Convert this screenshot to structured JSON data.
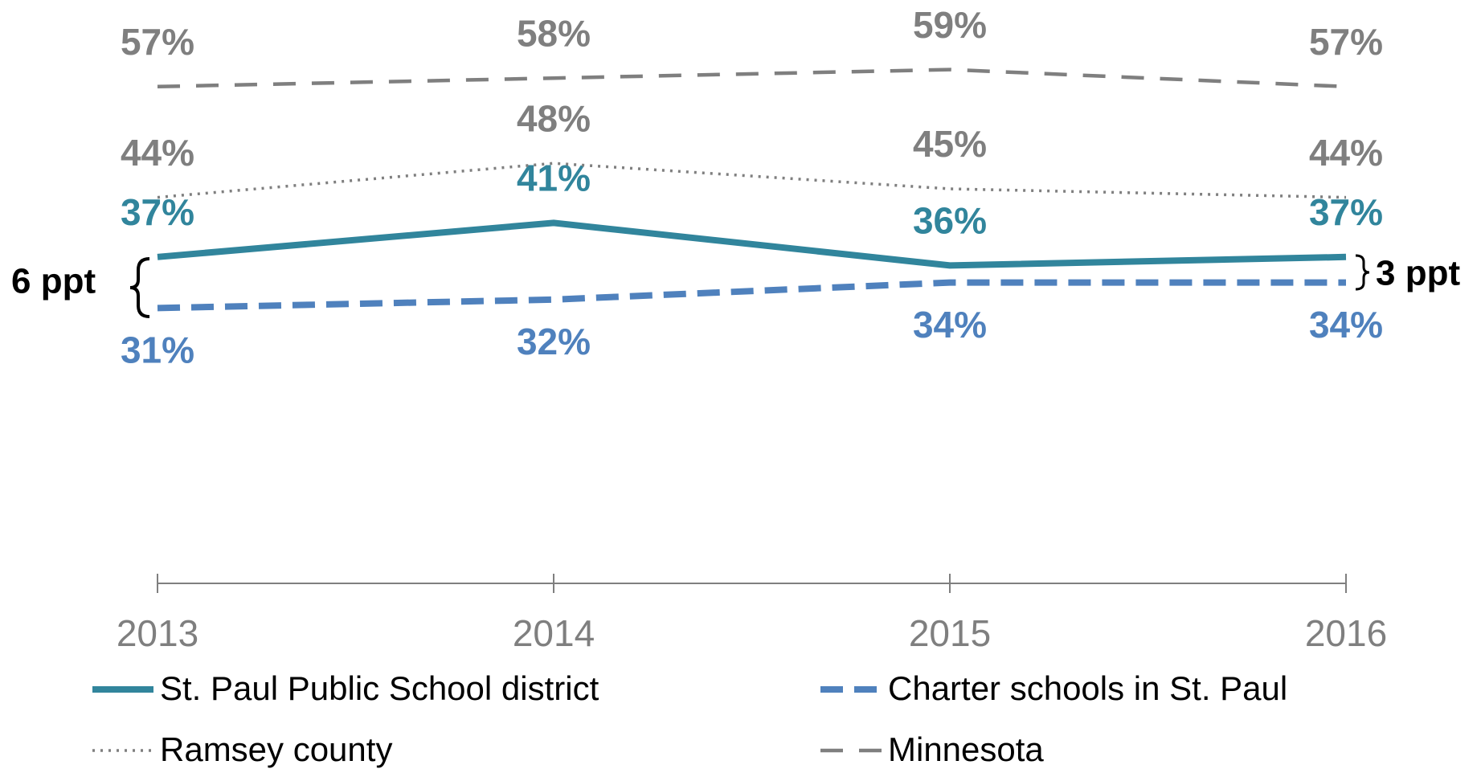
{
  "chart_data": {
    "type": "line",
    "categories": [
      "2013",
      "2014",
      "2015",
      "2016"
    ],
    "ylim": [
      0,
      65
    ],
    "series": [
      {
        "name": "St. Paul Public School district",
        "color": "#31859c",
        "style": "solid",
        "label_position": "above",
        "values": [
          37,
          41,
          36,
          37
        ],
        "value_labels": [
          "37%",
          "41%",
          "36%",
          "37%"
        ]
      },
      {
        "name": "Charter schools in St. Paul",
        "color": "#4f81bd",
        "style": "dashed",
        "label_position": "below",
        "values": [
          31,
          32,
          34,
          34
        ],
        "value_labels": [
          "31%",
          "32%",
          "34%",
          "34%"
        ]
      },
      {
        "name": "Ramsey county",
        "color": "#7f7f7f",
        "style": "dotted",
        "label_position": "above",
        "values": [
          44,
          48,
          45,
          44
        ],
        "value_labels": [
          "44%",
          "48%",
          "45%",
          "44%"
        ]
      },
      {
        "name": "Minnesota",
        "color": "#7f7f7f",
        "style": "longdash",
        "label_position": "above",
        "values": [
          57,
          58,
          59,
          57
        ],
        "value_labels": [
          "57%",
          "58%",
          "59%",
          "57%"
        ]
      }
    ],
    "annotations": [
      "6 ppt",
      "3 ppt"
    ]
  }
}
